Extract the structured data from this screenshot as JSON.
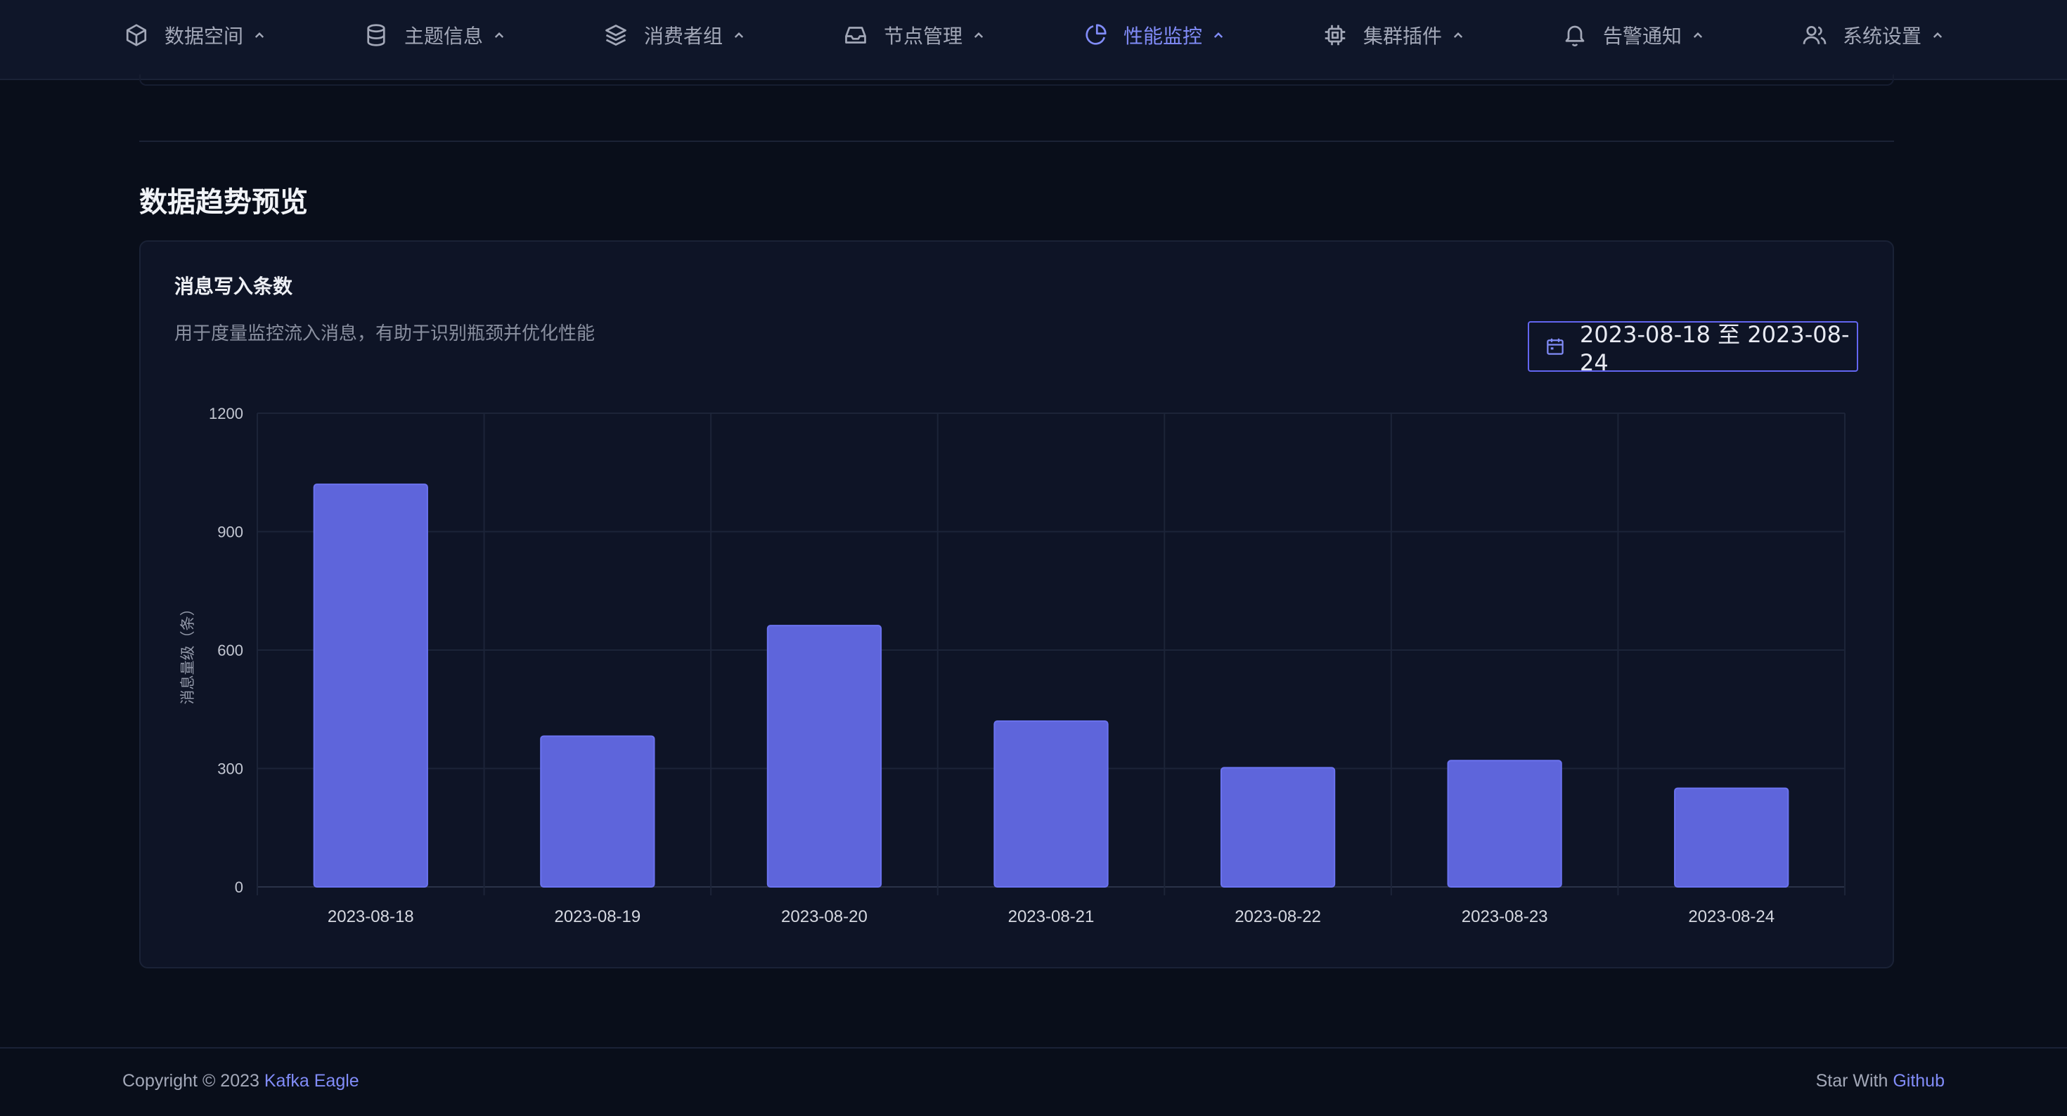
{
  "nav": {
    "items": [
      {
        "label": "数据空间",
        "icon": "cube-icon"
      },
      {
        "label": "主题信息",
        "icon": "database-icon"
      },
      {
        "label": "消费者组",
        "icon": "layers-icon"
      },
      {
        "label": "节点管理",
        "icon": "inbox-icon"
      },
      {
        "label": "性能监控",
        "icon": "pie-chart-icon",
        "active": true
      },
      {
        "label": "集群插件",
        "icon": "cpu-icon"
      },
      {
        "label": "告警通知",
        "icon": "bell-icon"
      },
      {
        "label": "系统设置",
        "icon": "users-icon"
      }
    ],
    "active_color": "#818cf8"
  },
  "section": {
    "title": "数据趋势预览"
  },
  "card": {
    "title": "消息写入条数",
    "description": "用于度量监控流入消息，有助于识别瓶颈并优化性能",
    "date_range": "2023-08-18 至 2023-08-24"
  },
  "chart_data": {
    "type": "bar",
    "categories": [
      "2023-08-18",
      "2023-08-19",
      "2023-08-20",
      "2023-08-21",
      "2023-08-22",
      "2023-08-23",
      "2023-08-24"
    ],
    "values": [
      1020,
      382,
      662,
      420,
      302,
      320,
      250
    ],
    "ylabel": "消息量级（条）",
    "xlabel": "",
    "ylim": [
      0,
      1200
    ],
    "yticks": [
      0,
      300,
      600,
      900,
      1200
    ],
    "grid": true,
    "bar_color": "#5e65db"
  },
  "footer": {
    "copyright_prefix": "Copyright © 2023 ",
    "copyright_link": "Kafka Eagle",
    "star_prefix": "Star With ",
    "star_link": "Github"
  }
}
